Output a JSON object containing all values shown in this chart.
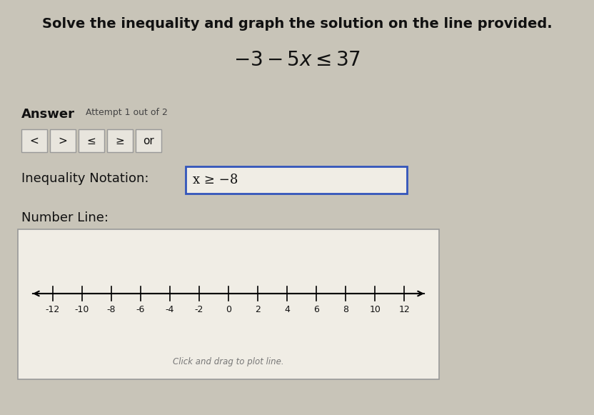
{
  "title_text": "Solve the inequality and graph the solution on the line provided.",
  "equation": "$-3 - 5x \\leq 37$",
  "answer_label": "Answer",
  "attempt_text": "Attempt 1 out of 2",
  "buttons": [
    "<",
    ">",
    "≤",
    "≥",
    "or"
  ],
  "inequality_label": "Inequality Notation:",
  "inequality_answer": "x ≥ −8",
  "number_line_label": "Number Line:",
  "number_line_note": "Click and drag to plot line.",
  "tick_values": [
    -12,
    -10,
    -8,
    -6,
    -4,
    -2,
    0,
    2,
    4,
    6,
    8,
    10,
    12
  ],
  "bg_color": "#c8c4b8",
  "box_bg": "#f0ede5",
  "number_line_bg": "#f0ede5",
  "btn_bg": "#e8e5dd",
  "btn_border": "#999999",
  "ineq_border": "#3355bb",
  "nl_border": "#999999",
  "text_color": "#111111",
  "faint_text": "#777777"
}
